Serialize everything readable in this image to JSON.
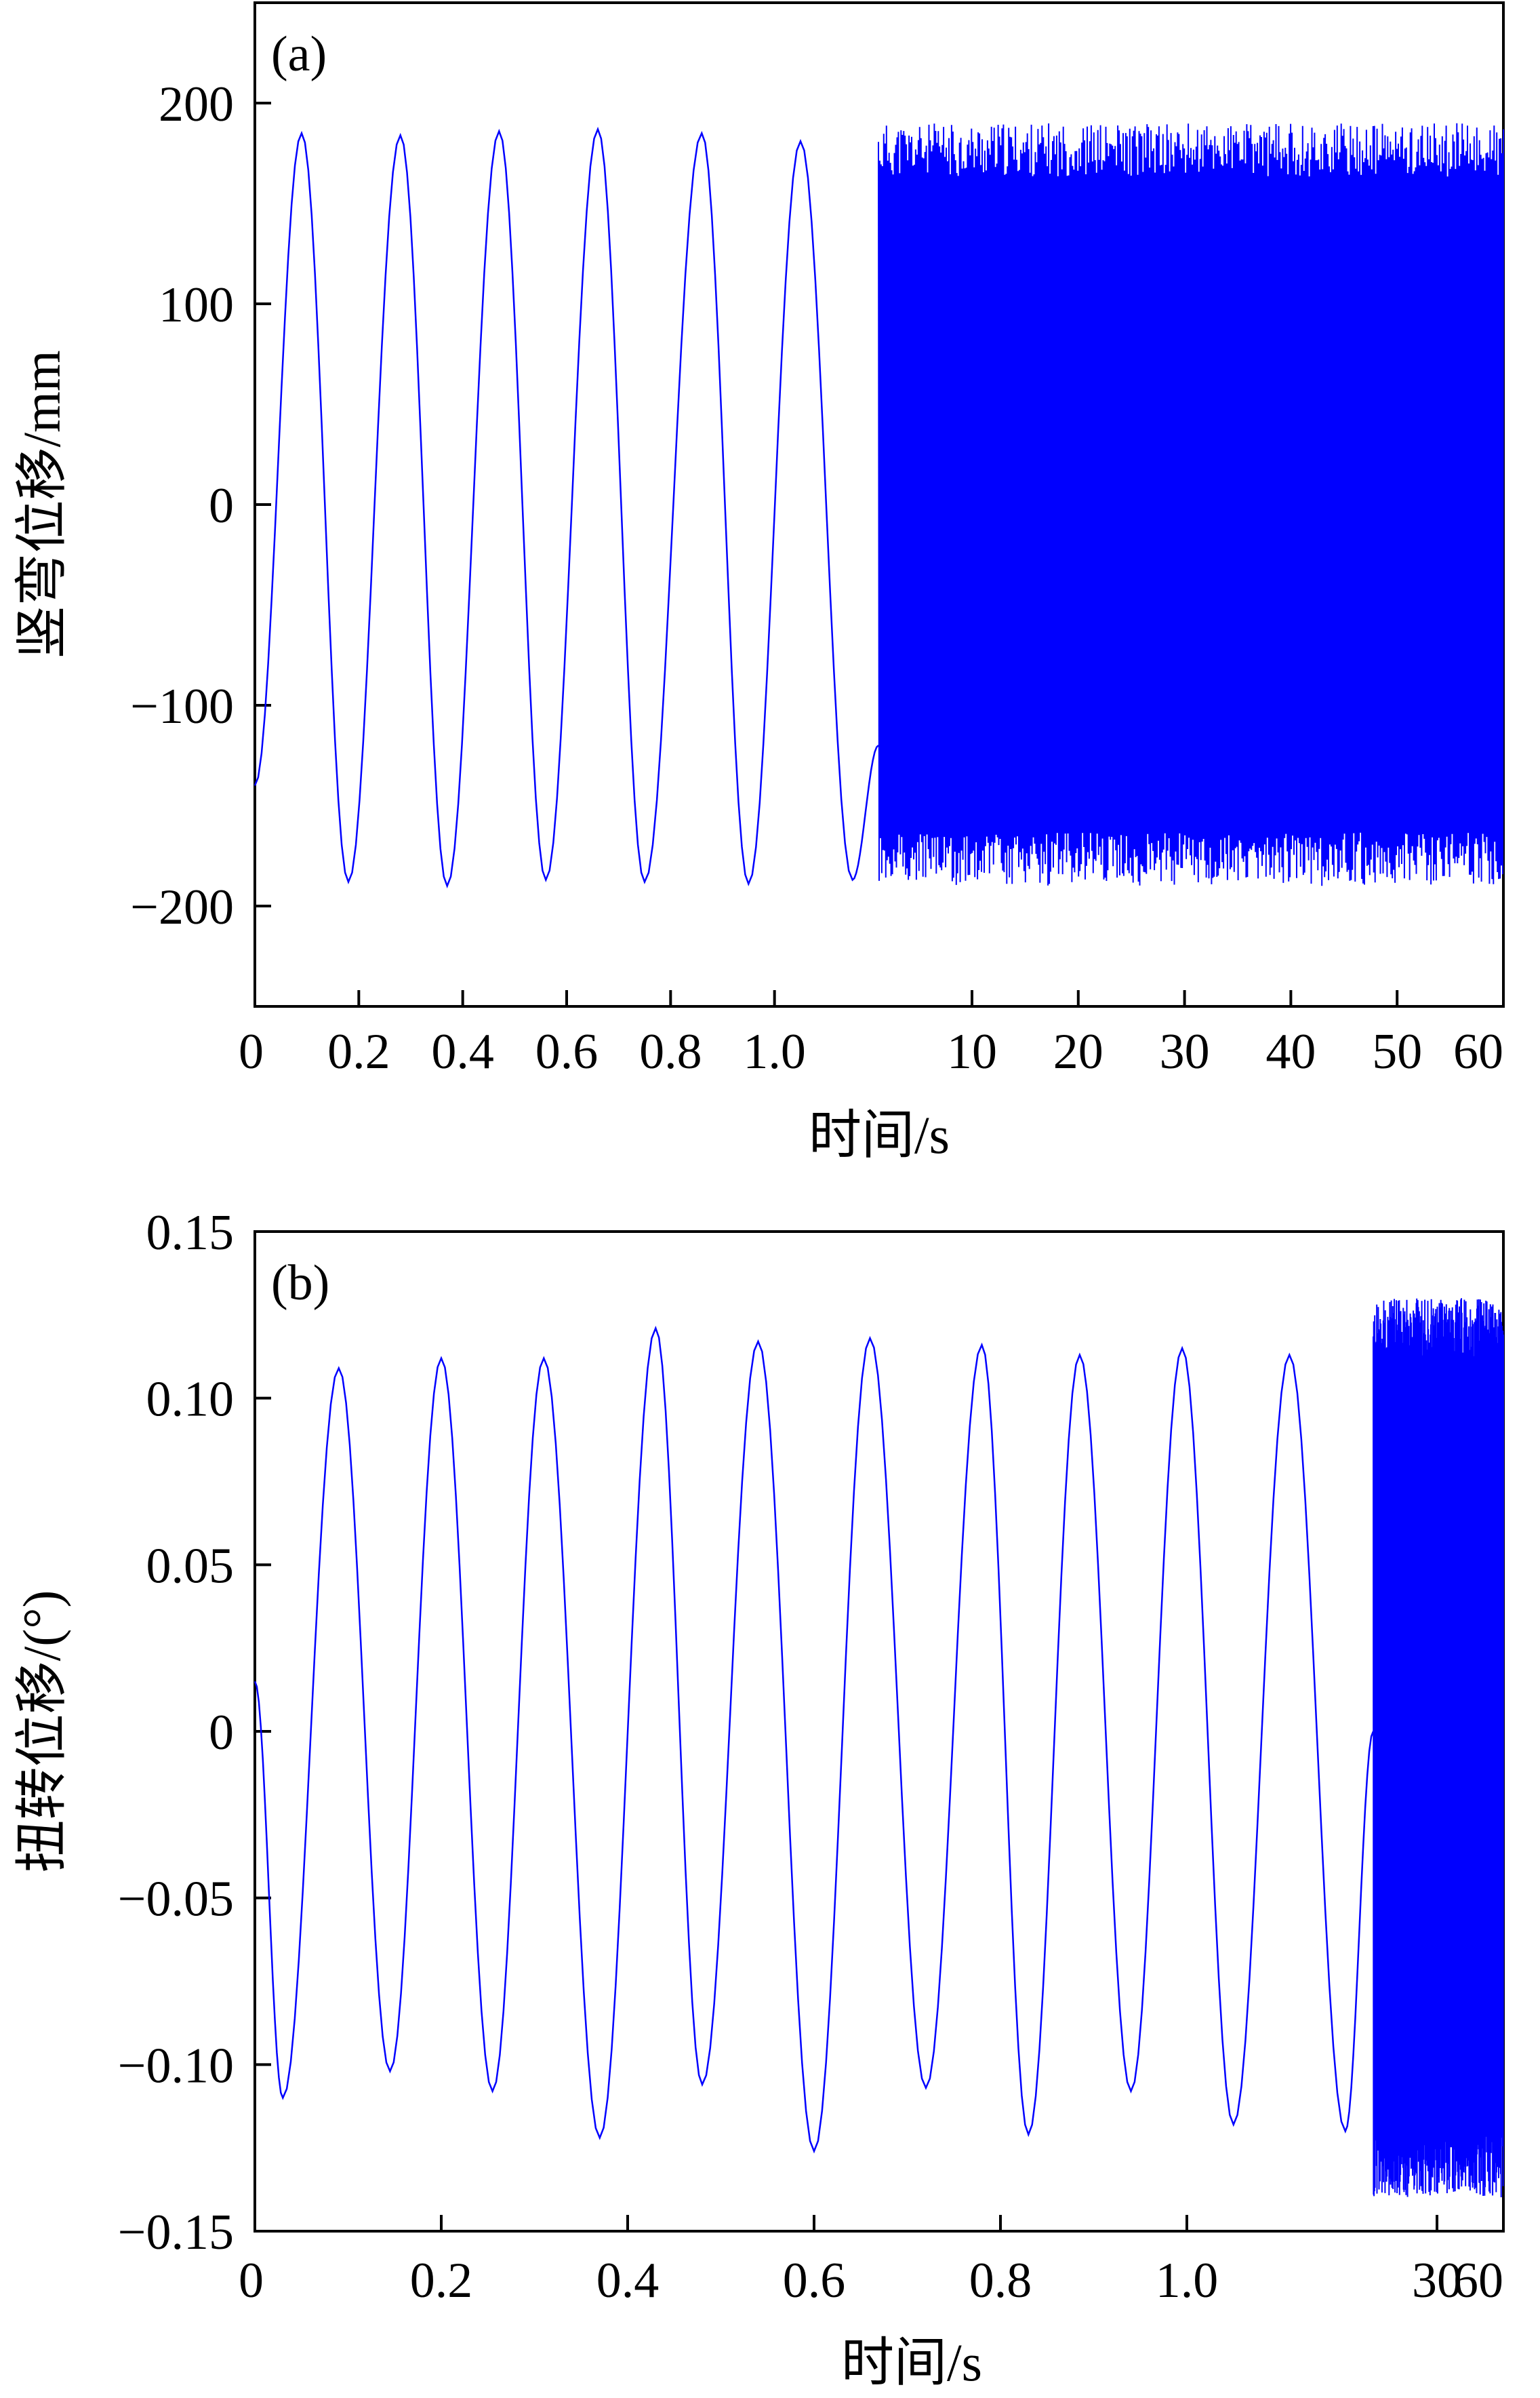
{
  "colors": {
    "line": "#0000ff",
    "axis": "#000000",
    "background": "#ffffff"
  },
  "chart_data": [
    {
      "type": "line",
      "panel_label": "(a)",
      "ylabel": "竖弯位移/mm",
      "xlabel": "时间/s",
      "ylim": [
        -250,
        250
      ],
      "yticks": [
        {
          "value": 200,
          "label": "200"
        },
        {
          "value": 100,
          "label": "100"
        },
        {
          "value": 0,
          "label": "0"
        },
        {
          "value": -100,
          "label": "−100"
        },
        {
          "value": -200,
          "label": "−200"
        }
      ],
      "x_axis": {
        "note": "broken time axis: linear 0–1.2 s, then compressed 1.2–60 s",
        "segments": [
          {
            "from": 0,
            "to": 1.2
          },
          {
            "from": 1.2,
            "to": 60
          }
        ],
        "ticks": [
          {
            "value": 0,
            "label": "0"
          },
          {
            "value": 0.2,
            "label": "0.2"
          },
          {
            "value": 0.4,
            "label": "0.4"
          },
          {
            "value": 0.6,
            "label": "0.6"
          },
          {
            "value": 0.8,
            "label": "0.8"
          },
          {
            "value": 1.0,
            "label": "1.0"
          },
          {
            "value": 10,
            "label": "10"
          },
          {
            "value": 20,
            "label": "20"
          },
          {
            "value": 30,
            "label": "30"
          },
          {
            "value": 40,
            "label": "40"
          },
          {
            "value": 50,
            "label": "50"
          },
          {
            "value": 60,
            "label": "60"
          }
        ]
      },
      "series": [
        {
          "x": [
            0.0,
            0.09,
            0.18,
            0.28,
            0.37,
            0.47,
            0.56,
            0.66,
            0.75,
            0.86,
            0.95,
            1.05,
            1.15,
            1.2
          ],
          "y": [
            -140,
            185,
            -188,
            184,
            -190,
            186,
            -187,
            187,
            -188,
            185,
            -189,
            181,
            -187,
            -120
          ]
        }
      ],
      "dense_region": {
        "x_range": [
          1.2,
          60
        ],
        "y_max": 190,
        "y_min": -190
      }
    },
    {
      "type": "line",
      "panel_label": "(b)",
      "ylabel": "扭转位移/(°)",
      "xlabel": "时间/s",
      "ylim": [
        -0.15,
        0.15
      ],
      "yticks": [
        {
          "value": 0.15,
          "label": "0.15"
        },
        {
          "value": 0.1,
          "label": "0.10"
        },
        {
          "value": 0.05,
          "label": "0.05"
        },
        {
          "value": 0,
          "label": "0"
        },
        {
          "value": -0.05,
          "label": "−0.05"
        },
        {
          "value": -0.1,
          "label": "−0.10"
        },
        {
          "value": -0.15,
          "label": "−0.15"
        }
      ],
      "x_axis": {
        "note": "broken time axis: linear 0–1.2 s, then compressed 1.2–60 s",
        "segments": [
          {
            "from": 0,
            "to": 1.2
          },
          {
            "from": 1.2,
            "to": 60
          }
        ],
        "ticks": [
          {
            "value": 0,
            "label": "0"
          },
          {
            "value": 0.2,
            "label": "0.2"
          },
          {
            "value": 0.4,
            "label": "0.4"
          },
          {
            "value": 0.6,
            "label": "0.6"
          },
          {
            "value": 0.8,
            "label": "0.8"
          },
          {
            "value": 1.0,
            "label": "1.0"
          },
          {
            "value": 30,
            "label": "30"
          },
          {
            "value": 60,
            "label": "60"
          }
        ]
      },
      "series": [
        {
          "x": [
            0.0,
            0.03,
            0.09,
            0.145,
            0.2,
            0.255,
            0.31,
            0.37,
            0.43,
            0.48,
            0.54,
            0.6,
            0.66,
            0.72,
            0.78,
            0.83,
            0.885,
            0.94,
            0.995,
            1.05,
            1.11,
            1.17,
            1.2
          ],
          "y": [
            0.015,
            -0.11,
            0.109,
            -0.102,
            0.112,
            -0.108,
            0.112,
            -0.122,
            0.121,
            -0.106,
            0.117,
            -0.126,
            0.118,
            -0.107,
            0.116,
            -0.121,
            0.113,
            -0.108,
            0.115,
            -0.118,
            0.113,
            -0.12,
            0.0
          ]
        }
      ],
      "dense_region": {
        "x_range": [
          1.2,
          60
        ],
        "y_max": 0.13,
        "y_min": -0.14
      }
    }
  ]
}
